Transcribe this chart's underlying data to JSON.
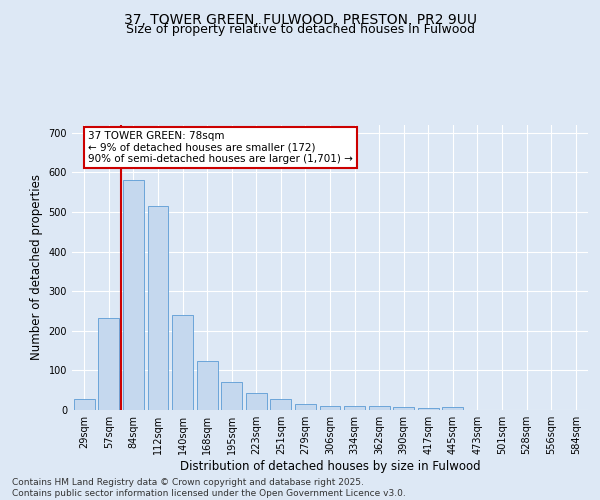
{
  "title_line1": "37, TOWER GREEN, FULWOOD, PRESTON, PR2 9UU",
  "title_line2": "Size of property relative to detached houses in Fulwood",
  "xlabel": "Distribution of detached houses by size in Fulwood",
  "ylabel": "Number of detached properties",
  "categories": [
    "29sqm",
    "57sqm",
    "84sqm",
    "112sqm",
    "140sqm",
    "168sqm",
    "195sqm",
    "223sqm",
    "251sqm",
    "279sqm",
    "306sqm",
    "334sqm",
    "362sqm",
    "390sqm",
    "417sqm",
    "445sqm",
    "473sqm",
    "501sqm",
    "528sqm",
    "556sqm",
    "584sqm"
  ],
  "values": [
    28,
    233,
    580,
    515,
    240,
    125,
    70,
    43,
    27,
    15,
    10,
    10,
    10,
    8,
    5,
    8,
    1,
    1,
    1,
    1,
    1
  ],
  "bar_color": "#c5d8ee",
  "bar_edgecolor": "#5b9bd5",
  "vline_x": 1.5,
  "vline_color": "#cc0000",
  "annotation_text": "37 TOWER GREEN: 78sqm\n← 9% of detached houses are smaller (172)\n90% of semi-detached houses are larger (1,701) →",
  "annotation_box_color": "#ffffff",
  "annotation_box_edgecolor": "#cc0000",
  "ylim": [
    0,
    720
  ],
  "yticks": [
    0,
    100,
    200,
    300,
    400,
    500,
    600,
    700
  ],
  "background_color": "#dde8f5",
  "plot_background": "#dde8f5",
  "footer_line1": "Contains HM Land Registry data © Crown copyright and database right 2025.",
  "footer_line2": "Contains public sector information licensed under the Open Government Licence v3.0.",
  "grid_color": "#ffffff",
  "title_fontsize": 10,
  "subtitle_fontsize": 9,
  "axis_label_fontsize": 8.5,
  "tick_fontsize": 7,
  "footer_fontsize": 6.5,
  "annotation_fontsize": 7.5
}
